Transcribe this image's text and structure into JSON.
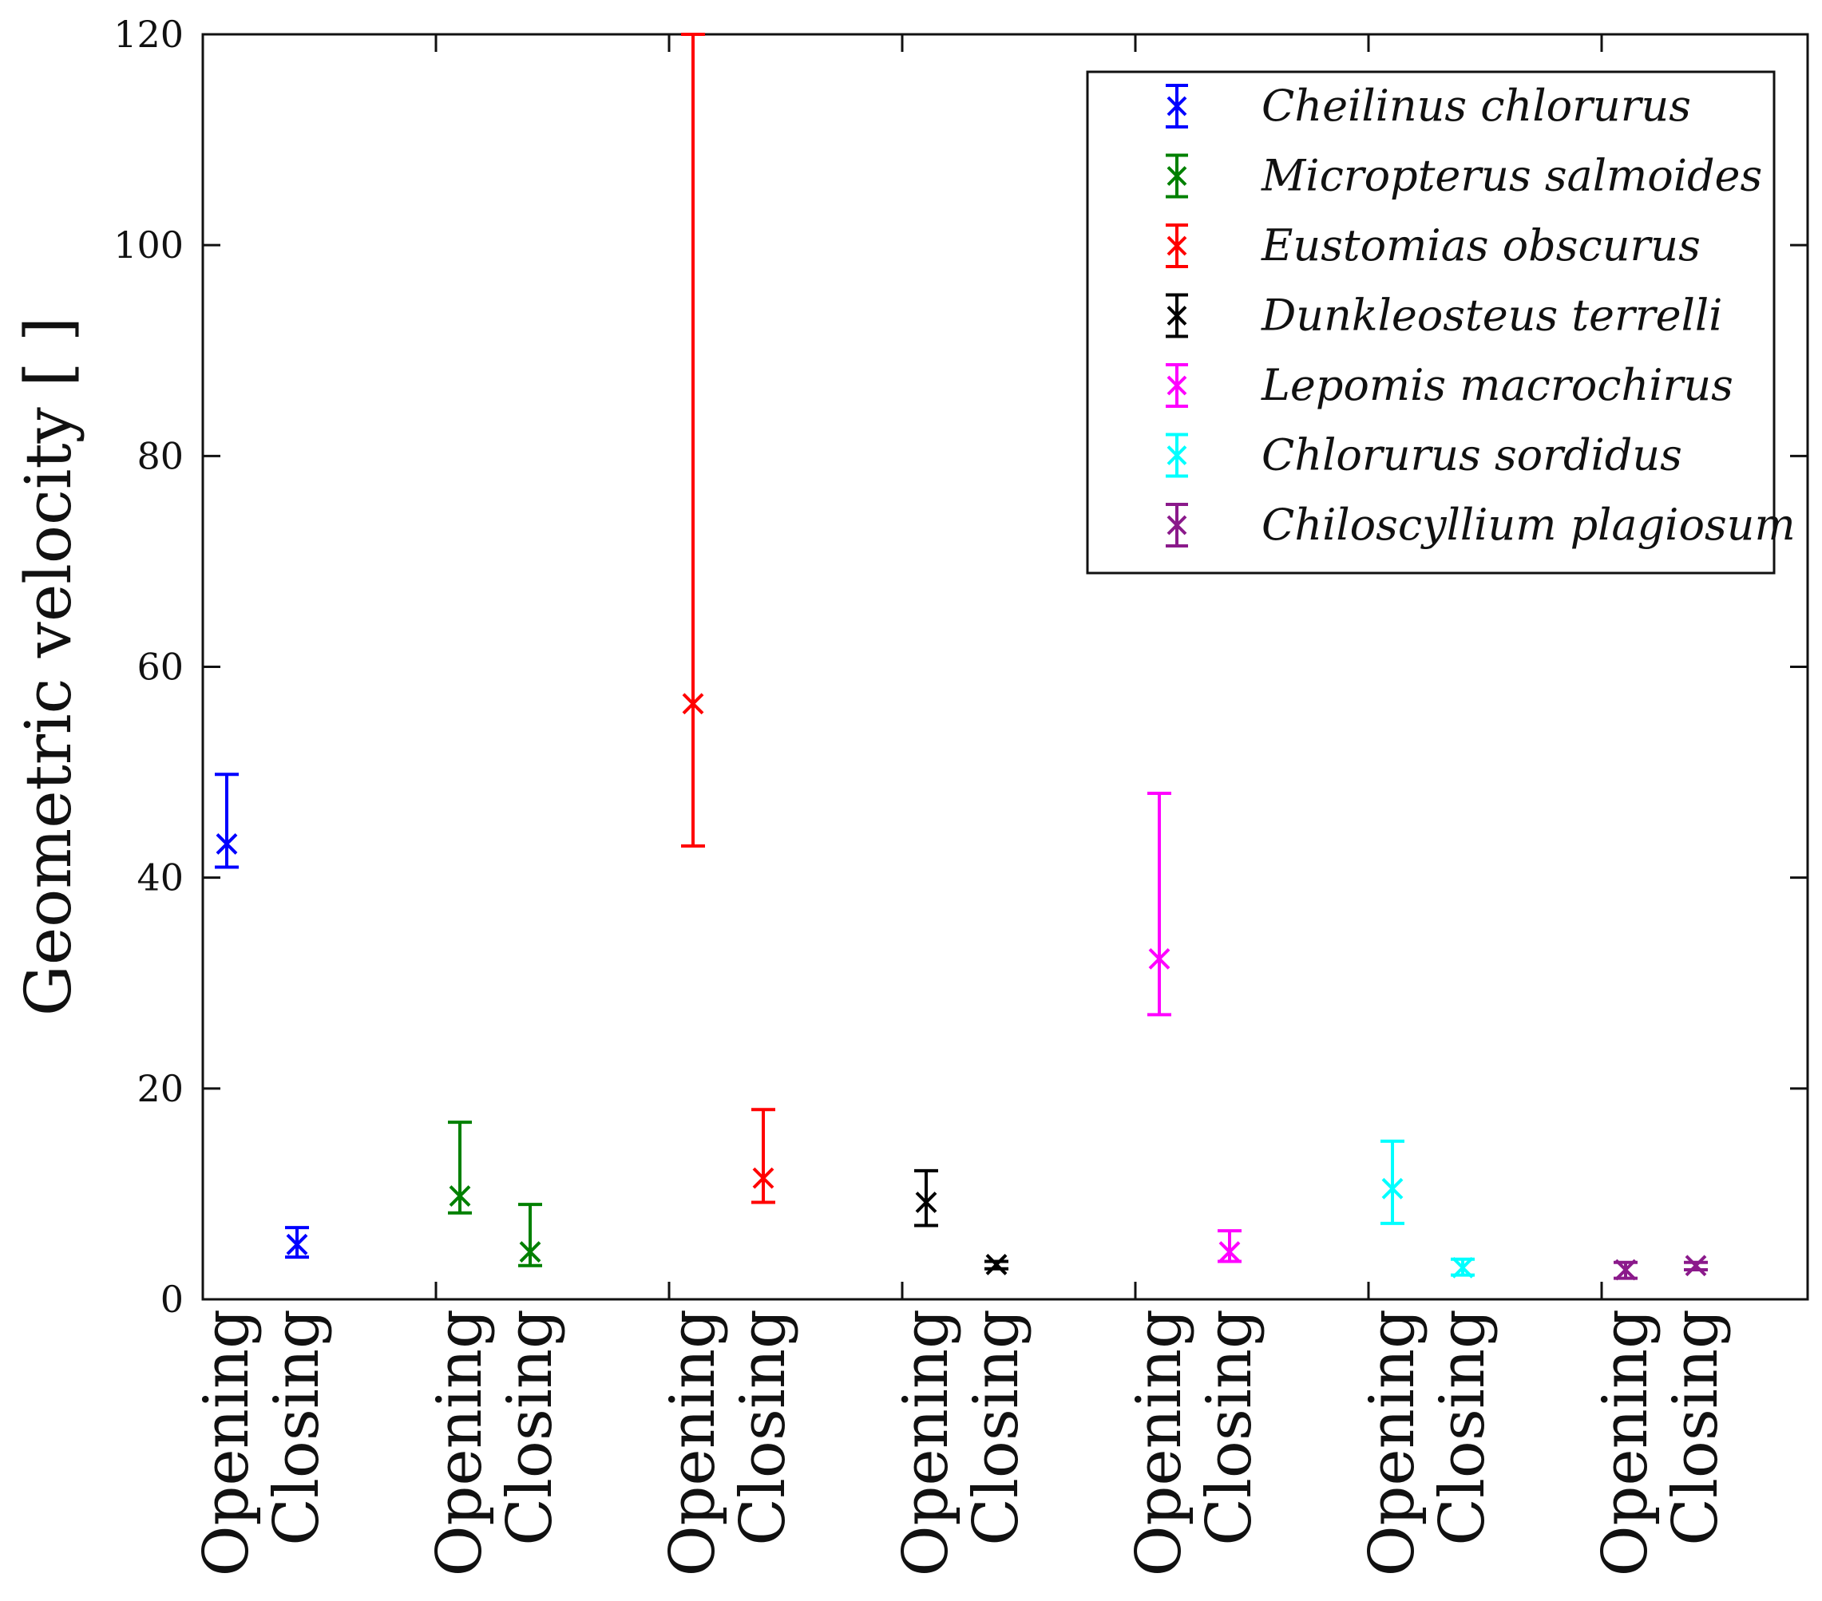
{
  "chart_data": {
    "type": "errorbar",
    "title": "",
    "xlabel": "",
    "ylabel": "Geometric velocity [ ]",
    "ylim": [
      0,
      120
    ],
    "yticks": [
      0,
      20,
      40,
      60,
      80,
      100,
      120
    ],
    "grid": false,
    "legend_position": "top-right",
    "categories": [
      "Opening",
      "Closing",
      "Opening",
      "Closing",
      "Opening",
      "Closing",
      "Opening",
      "Closing",
      "Opening",
      "Closing",
      "Opening",
      "Closing",
      "Opening",
      "Closing"
    ],
    "series": [
      {
        "name": "Cheilinus chlorurus",
        "color": "#0000ff",
        "marker": "x",
        "points": [
          {
            "category": "Opening",
            "value": 43.2,
            "lower": 41.0,
            "upper": 49.8
          },
          {
            "category": "Closing",
            "value": 5.2,
            "lower": 4.0,
            "upper": 6.8
          }
        ]
      },
      {
        "name": "Micropterus salmoides",
        "color": "#008000",
        "marker": "x",
        "points": [
          {
            "category": "Opening",
            "value": 9.8,
            "lower": 8.2,
            "upper": 16.8
          },
          {
            "category": "Closing",
            "value": 4.5,
            "lower": 3.2,
            "upper": 9.0
          }
        ]
      },
      {
        "name": "Eustomias obscurus",
        "color": "#ff0000",
        "marker": "x",
        "points": [
          {
            "category": "Opening",
            "value": 56.5,
            "lower": 43.0,
            "upper": 120.0
          },
          {
            "category": "Closing",
            "value": 11.5,
            "lower": 9.2,
            "upper": 18.0
          }
        ]
      },
      {
        "name": "Dunkleosteus terrelli",
        "color": "#000000",
        "marker": "x",
        "points": [
          {
            "category": "Opening",
            "value": 9.2,
            "lower": 7.0,
            "upper": 12.2
          },
          {
            "category": "Closing",
            "value": 3.3,
            "lower": 2.9,
            "upper": 3.6
          }
        ]
      },
      {
        "name": "Lepomis macrochirus",
        "color": "#ff00ff",
        "marker": "x",
        "points": [
          {
            "category": "Opening",
            "value": 32.3,
            "lower": 27.0,
            "upper": 48.0
          },
          {
            "category": "Closing",
            "value": 4.5,
            "lower": 3.6,
            "upper": 6.5
          }
        ]
      },
      {
        "name": "Chlorurus sordidus",
        "color": "#00ffff",
        "marker": "x",
        "points": [
          {
            "category": "Opening",
            "value": 10.5,
            "lower": 7.2,
            "upper": 15.0
          },
          {
            "category": "Closing",
            "value": 3.0,
            "lower": 2.3,
            "upper": 3.8
          }
        ]
      },
      {
        "name": "Chiloscyllium plagiosum",
        "color": "#8b1a8b",
        "marker": "x",
        "points": [
          {
            "category": "Opening",
            "value": 2.8,
            "lower": 2.0,
            "upper": 3.5
          },
          {
            "category": "Closing",
            "value": 3.2,
            "lower": 2.8,
            "upper": 3.5
          }
        ]
      }
    ]
  }
}
